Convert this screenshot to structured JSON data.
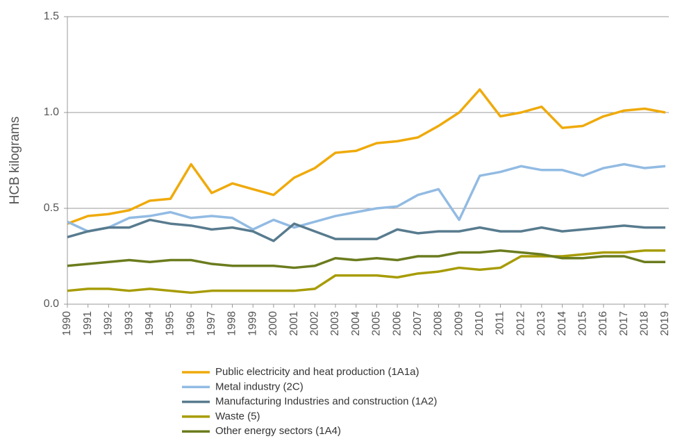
{
  "chart_data": {
    "type": "line",
    "ylabel": "HCB kilograms",
    "categories": [
      "1990",
      "1991",
      "1992",
      "1993",
      "1994",
      "1995",
      "1996",
      "1997",
      "1998",
      "1999",
      "2000",
      "2001",
      "2002",
      "2003",
      "2004",
      "2005",
      "2006",
      "2007",
      "2008",
      "2009",
      "2010",
      "2011",
      "2012",
      "2013",
      "2014",
      "2015",
      "2016",
      "2017",
      "2018",
      "2019"
    ],
    "ylim": [
      0,
      1.5
    ],
    "yticks": [
      {
        "value": 0,
        "label": "0.0"
      },
      0.5,
      {
        "value": 1,
        "label": "1.0"
      },
      1.5
    ],
    "grid": true,
    "legend": "bottom",
    "series": [
      {
        "name": "Public electricity and heat production (1A1a)",
        "color": "#efaa0c",
        "values": [
          0.42,
          0.46,
          0.47,
          0.49,
          0.54,
          0.55,
          0.73,
          0.58,
          0.63,
          0.6,
          0.57,
          0.66,
          0.71,
          0.79,
          0.8,
          0.84,
          0.85,
          0.87,
          0.93,
          1.0,
          1.12,
          0.98,
          1.0,
          1.03,
          0.92,
          0.93,
          0.98,
          1.01,
          1.02,
          1.0
        ]
      },
      {
        "name": "Metal industry (2C)",
        "color": "#92bbe3",
        "values": [
          0.43,
          0.38,
          0.4,
          0.45,
          0.46,
          0.48,
          0.45,
          0.46,
          0.45,
          0.39,
          0.44,
          0.4,
          0.43,
          0.46,
          0.48,
          0.5,
          0.51,
          0.57,
          0.6,
          0.44,
          0.67,
          0.69,
          0.72,
          0.7,
          0.7,
          0.67,
          0.71,
          0.73,
          0.71,
          0.72
        ]
      },
      {
        "name": "Manufacturing Industries and construction (1A2)",
        "color": "#587b8e",
        "values": [
          0.35,
          0.38,
          0.4,
          0.4,
          0.44,
          0.42,
          0.41,
          0.39,
          0.4,
          0.38,
          0.33,
          0.42,
          0.38,
          0.34,
          0.34,
          0.34,
          0.39,
          0.37,
          0.38,
          0.38,
          0.4,
          0.38,
          0.38,
          0.4,
          0.38,
          0.39,
          0.4,
          0.41,
          0.4,
          0.4
        ]
      },
      {
        "name": "Waste (5)",
        "color": "#a79c06",
        "values": [
          0.07,
          0.08,
          0.08,
          0.07,
          0.08,
          0.07,
          0.06,
          0.07,
          0.07,
          0.07,
          0.07,
          0.07,
          0.08,
          0.15,
          0.15,
          0.15,
          0.14,
          0.16,
          0.17,
          0.19,
          0.18,
          0.19,
          0.25,
          0.25,
          0.25,
          0.26,
          0.27,
          0.27,
          0.28,
          0.28
        ]
      },
      {
        "name": "Other energy sectors (1A4)",
        "color": "#6b7c1e",
        "values": [
          0.2,
          0.21,
          0.22,
          0.23,
          0.22,
          0.23,
          0.23,
          0.21,
          0.2,
          0.2,
          0.2,
          0.19,
          0.2,
          0.24,
          0.23,
          0.24,
          0.23,
          0.25,
          0.25,
          0.27,
          0.27,
          0.28,
          0.27,
          0.26,
          0.24,
          0.24,
          0.25,
          0.25,
          0.22,
          0.22
        ]
      }
    ]
  }
}
